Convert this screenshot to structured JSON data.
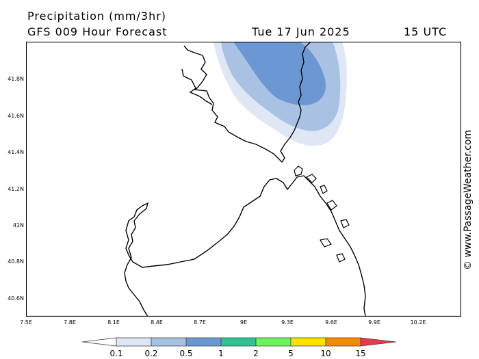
{
  "header": {
    "title": "Precipitation (mm/3hr)",
    "subtitle": "GFS 009 Hour Forecast",
    "date": "Tue 17 Jun 2025",
    "time": "15 UTC"
  },
  "axes": {
    "lat_labels": [
      "41.8N",
      "41.6N",
      "41.4N",
      "41.2N",
      "41N",
      "40.8N",
      "40.6N"
    ],
    "lon_labels": [
      "7.5E",
      "7.8E",
      "8.1E",
      "8.4E",
      "8.7E",
      "9E",
      "9.3E",
      "9.6E",
      "9.9E",
      "10.2E"
    ]
  },
  "credit": "© www.PassageWeather.com",
  "legend": {
    "labels": [
      "0.1",
      "0.2",
      "0.5",
      "1",
      "2",
      "5",
      "10",
      "15"
    ],
    "colors": [
      "#ffffff",
      "#dfe7f5",
      "#a9c1e3",
      "#6b97d2",
      "#2dc393",
      "#6cf45c",
      "#fde200",
      "#f58a00",
      "#e53a4a"
    ]
  },
  "precip_colors": {
    "light": "#dfe7f5",
    "medium": "#a9c1e3",
    "heavy": "#6b97d2"
  }
}
